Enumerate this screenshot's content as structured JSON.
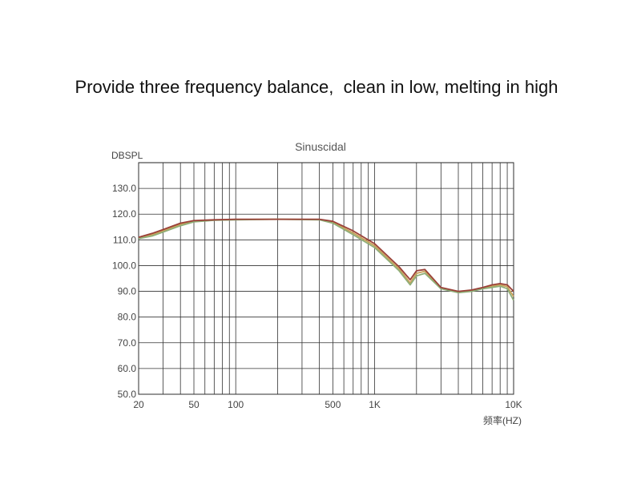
{
  "headline": "Provide three frequency balance,  clean in low, melting in high",
  "chart_data": {
    "type": "line",
    "title": "Sinuscidal",
    "ylabel": "DBSPL",
    "xlabel": "频率(HZ)",
    "x_scale": "log",
    "xlim": [
      20,
      10000
    ],
    "ylim": [
      50,
      140
    ],
    "y_ticks": [
      {
        "value": 50,
        "label": "50.0"
      },
      {
        "value": 60,
        "label": "60.0"
      },
      {
        "value": 70,
        "label": "70.0"
      },
      {
        "value": 80,
        "label": "80.0"
      },
      {
        "value": 90,
        "label": "90.0"
      },
      {
        "value": 100,
        "label": "100.0"
      },
      {
        "value": 110,
        "label": "110.0"
      },
      {
        "value": 120,
        "label": "120.0"
      },
      {
        "value": 130,
        "label": "130.0"
      }
    ],
    "x_ticks": [
      {
        "value": 20,
        "label": "20"
      },
      {
        "value": 50,
        "label": "50"
      },
      {
        "value": 100,
        "label": "100"
      },
      {
        "value": 500,
        "label": "500"
      },
      {
        "value": 1000,
        "label": "1K"
      },
      {
        "value": 10000,
        "label": "10K"
      }
    ],
    "x_gridlines": [
      20,
      30,
      40,
      50,
      60,
      70,
      80,
      90,
      100,
      200,
      300,
      400,
      500,
      600,
      700,
      800,
      900,
      1000,
      2000,
      3000,
      4000,
      5000,
      6000,
      7000,
      8000,
      9000,
      10000
    ],
    "grid": true,
    "series": [
      {
        "color": "#9a4038",
        "x": [
          20,
          25,
          30,
          40,
          50,
          70,
          100,
          200,
          400,
          500,
          700,
          1000,
          1500,
          1800,
          2000,
          2300,
          3000,
          4000,
          5000,
          6000,
          7000,
          8000,
          9000,
          10000
        ],
        "y": [
          111.0,
          112.5,
          114.0,
          116.5,
          117.5,
          117.8,
          118.0,
          118.0,
          118.0,
          117.2,
          113.5,
          108.5,
          99.5,
          94.5,
          98.0,
          98.5,
          91.5,
          90.0,
          90.5,
          91.5,
          92.5,
          93.0,
          92.5,
          90.0
        ]
      },
      {
        "color": "#8fae78",
        "x": [
          20,
          25,
          30,
          40,
          50,
          70,
          100,
          200,
          400,
          500,
          700,
          1000,
          1500,
          1800,
          2000,
          2300,
          3000,
          4000,
          5000,
          6000,
          7000,
          8000,
          9000,
          10000
        ],
        "y": [
          110.5,
          111.5,
          113.0,
          115.5,
          117.0,
          117.6,
          117.8,
          118.0,
          117.8,
          116.5,
          112.0,
          107.0,
          98.0,
          92.5,
          96.0,
          97.0,
          91.0,
          89.5,
          90.0,
          91.0,
          91.5,
          92.0,
          91.0,
          86.5
        ]
      },
      {
        "color": "#c9a15a",
        "x": [
          20,
          25,
          30,
          40,
          50,
          70,
          100,
          200,
          400,
          500,
          700,
          1000,
          1500,
          1800,
          2000,
          2300,
          3000,
          4000,
          5000,
          6000,
          7000,
          8000,
          9000,
          10000
        ],
        "y": [
          110.8,
          112.0,
          113.5,
          116.0,
          117.3,
          117.7,
          117.9,
          118.0,
          117.9,
          116.8,
          112.7,
          107.7,
          98.7,
          93.3,
          97.0,
          97.8,
          91.2,
          89.8,
          90.2,
          91.2,
          92.0,
          92.5,
          91.8,
          88.0
        ]
      }
    ]
  }
}
